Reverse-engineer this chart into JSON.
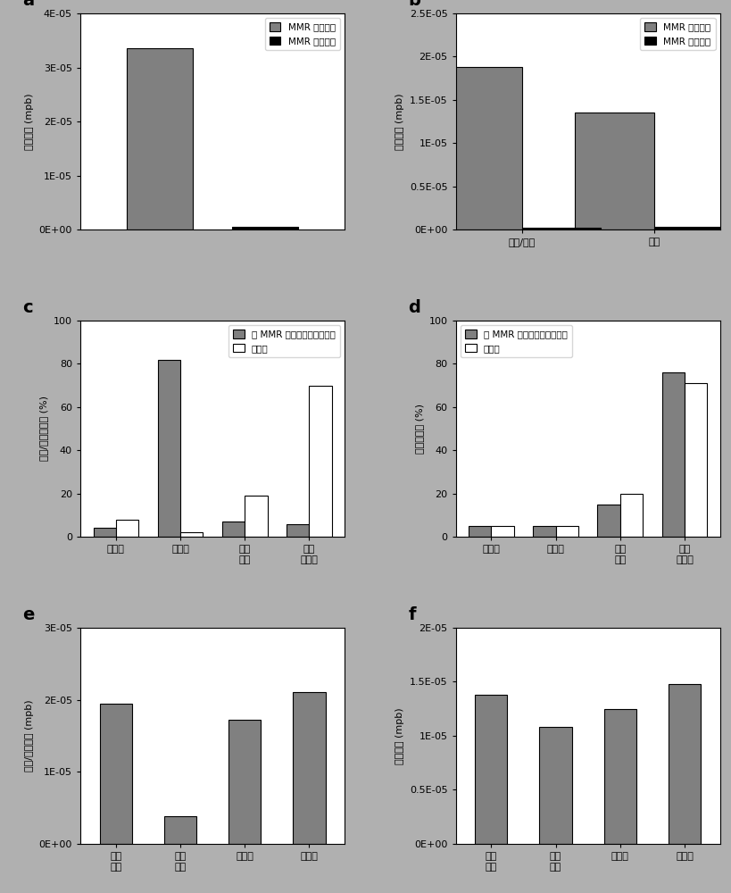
{
  "panel_a": {
    "bar_positions": [
      0.3,
      0.7
    ],
    "values": [
      3.35e-05,
      4.5e-07
    ],
    "colors": [
      "#808080",
      "#000000"
    ],
    "ylabel": "突变频率 (mpb)",
    "ylim": [
      0,
      4e-05
    ],
    "yticks": [
      0,
      1e-05,
      2e-05,
      3e-05,
      4e-05
    ],
    "yticklabels": [
      "0E+00",
      "1E-05",
      "2E-05",
      "3E-05",
      "4E-05"
    ],
    "legend_labels": [
      "MMR 缺陷肿瘤",
      "MMR 健全肿瘤"
    ],
    "bar_width": 0.25
  },
  "panel_b": {
    "categories": [
      "插入/缺失",
      "取代"
    ],
    "mmr_deficient": [
      1.88e-05,
      1.35e-05
    ],
    "mmr_proficient": [
      2.2e-07,
      3.5e-07
    ],
    "colors": [
      "#808080",
      "#000000"
    ],
    "ylabel": "突变频率 (mpb)",
    "ylim": [
      0,
      2.5e-05
    ],
    "yticks": [
      0,
      5e-06,
      1e-05,
      1.5e-05,
      2e-05,
      2.5e-05
    ],
    "yticklabels": [
      "0E+00",
      "0.5E-05",
      "1E-05",
      "1.5E-05",
      "2E-05",
      "2.5E-05"
    ],
    "legend_labels": [
      "MMR 缺陷肿瘤",
      "MMR 健全肿瘤"
    ],
    "bar_width": 0.3
  },
  "panel_c": {
    "categories": [
      "微卫星",
      "同聚物",
      "短同\n聚物",
      "不在\n重复中"
    ],
    "observed": [
      4,
      82,
      7,
      6
    ],
    "expected": [
      8,
      2,
      19,
      70
    ],
    "color_obs": "#808080",
    "color_exp": "#ffffff",
    "ylabel": "插入/缺失的分数 (%)",
    "ylim": [
      0,
      100
    ],
    "yticks": [
      0,
      20,
      40,
      60,
      80,
      100
    ],
    "legend_labels": [
      "在 MMR 缺陷肿瘤中观察到的",
      "预期的"
    ],
    "bar_width": 0.35
  },
  "panel_d": {
    "categories": [
      "微卫星",
      "同聚物",
      "短同\n聚物",
      "不在\n重复中"
    ],
    "observed": [
      5,
      5,
      15,
      76
    ],
    "expected": [
      5,
      5,
      20,
      71
    ],
    "color_obs": "#808080",
    "color_exp": "#ffffff",
    "ylabel": "取代的分数 (%)",
    "ylim": [
      0,
      100
    ],
    "yticks": [
      0,
      20,
      40,
      60,
      80,
      100
    ],
    "legend_labels": [
      "在 MMR 缺陷肿瘤中观察到的",
      "预期的"
    ],
    "bar_width": 0.35
  },
  "panel_e": {
    "categories": [
      "全基\n因组",
      "外显\n子组",
      "基因间",
      "内含子"
    ],
    "values": [
      1.95e-05,
      3.8e-06,
      1.72e-05,
      2.1e-05
    ],
    "color": "#808080",
    "ylabel": "插入/缺失频率 (mpb)",
    "ylim": [
      0,
      3e-05
    ],
    "yticks": [
      0,
      1e-05,
      2e-05,
      3e-05
    ],
    "yticklabels": [
      "0E+00",
      "1E-05",
      "2E-05",
      "3E-05"
    ],
    "bar_width": 0.5
  },
  "panel_f": {
    "categories": [
      "全基\n因组",
      "外显\n子组",
      "基因间",
      "内含子"
    ],
    "values": [
      1.38e-05,
      1.08e-05,
      1.25e-05,
      1.48e-05
    ],
    "color": "#808080",
    "ylabel": "取代频率 (mpb)",
    "ylim": [
      0,
      2e-05
    ],
    "yticks": [
      0,
      5e-06,
      1e-05,
      1.5e-05,
      2e-05
    ],
    "yticklabels": [
      "0E+00",
      "0.5E-05",
      "1E-05",
      "1.5E-05",
      "2E-05"
    ],
    "bar_width": 0.5
  },
  "bg_color": "#b0b0b0",
  "panel_label_fontsize": 14,
  "tick_fontsize": 8,
  "label_fontsize": 8,
  "legend_fontsize": 7.5
}
